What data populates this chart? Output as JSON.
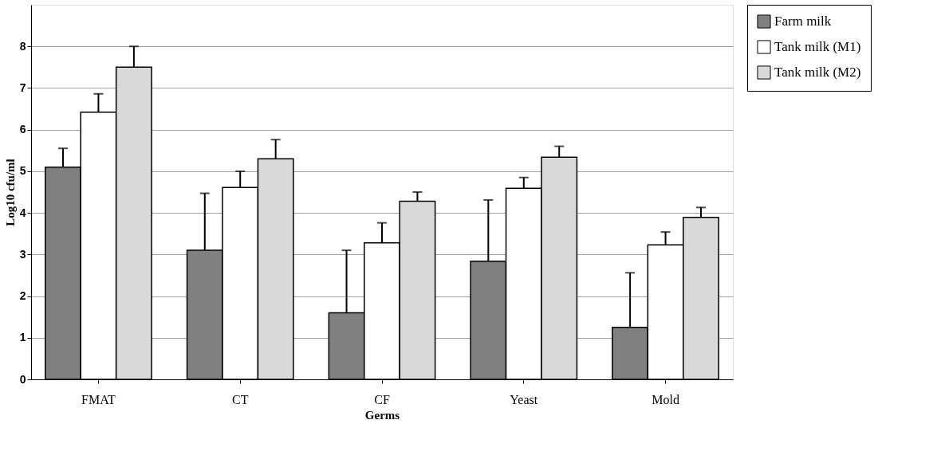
{
  "chart_data": {
    "type": "bar",
    "xlabel": "Germs",
    "ylabel": "Log10 cfu/ml",
    "categories": [
      "FMAT",
      "CT",
      "CF",
      "Yeast",
      "Mold"
    ],
    "series": [
      {
        "name": "Farm milk",
        "color": "#808080",
        "values": [
          5.1,
          3.1,
          1.6,
          2.84,
          1.25
        ],
        "errors": [
          [
            5.1,
            5.55
          ],
          [
            3.1,
            4.47
          ],
          [
            1.6,
            3.1
          ],
          [
            2.84,
            4.31
          ],
          [
            1.25,
            2.56
          ]
        ]
      },
      {
        "name": "Tank milk (M1)",
        "color": "#ffffff",
        "values": [
          6.42,
          4.61,
          3.28,
          4.59,
          3.23
        ],
        "errors": [
          [
            6.42,
            6.86
          ],
          [
            4.61,
            5.0
          ],
          [
            3.28,
            3.76
          ],
          [
            4.59,
            4.85
          ],
          [
            3.23,
            3.54
          ]
        ]
      },
      {
        "name": "Tank milk (M2)",
        "color": "#d9d9d9",
        "values": [
          7.5,
          5.3,
          4.28,
          5.34,
          3.89
        ],
        "errors": [
          [
            7.5,
            8.0
          ],
          [
            5.3,
            5.76
          ],
          [
            4.28,
            4.5
          ],
          [
            5.34,
            5.6
          ],
          [
            3.89,
            4.13
          ]
        ]
      }
    ],
    "ylim": [
      0,
      9
    ],
    "yticks": [
      0,
      1,
      2,
      3,
      4,
      5,
      6,
      7,
      8
    ],
    "grid": "y",
    "legend": "top right"
  }
}
